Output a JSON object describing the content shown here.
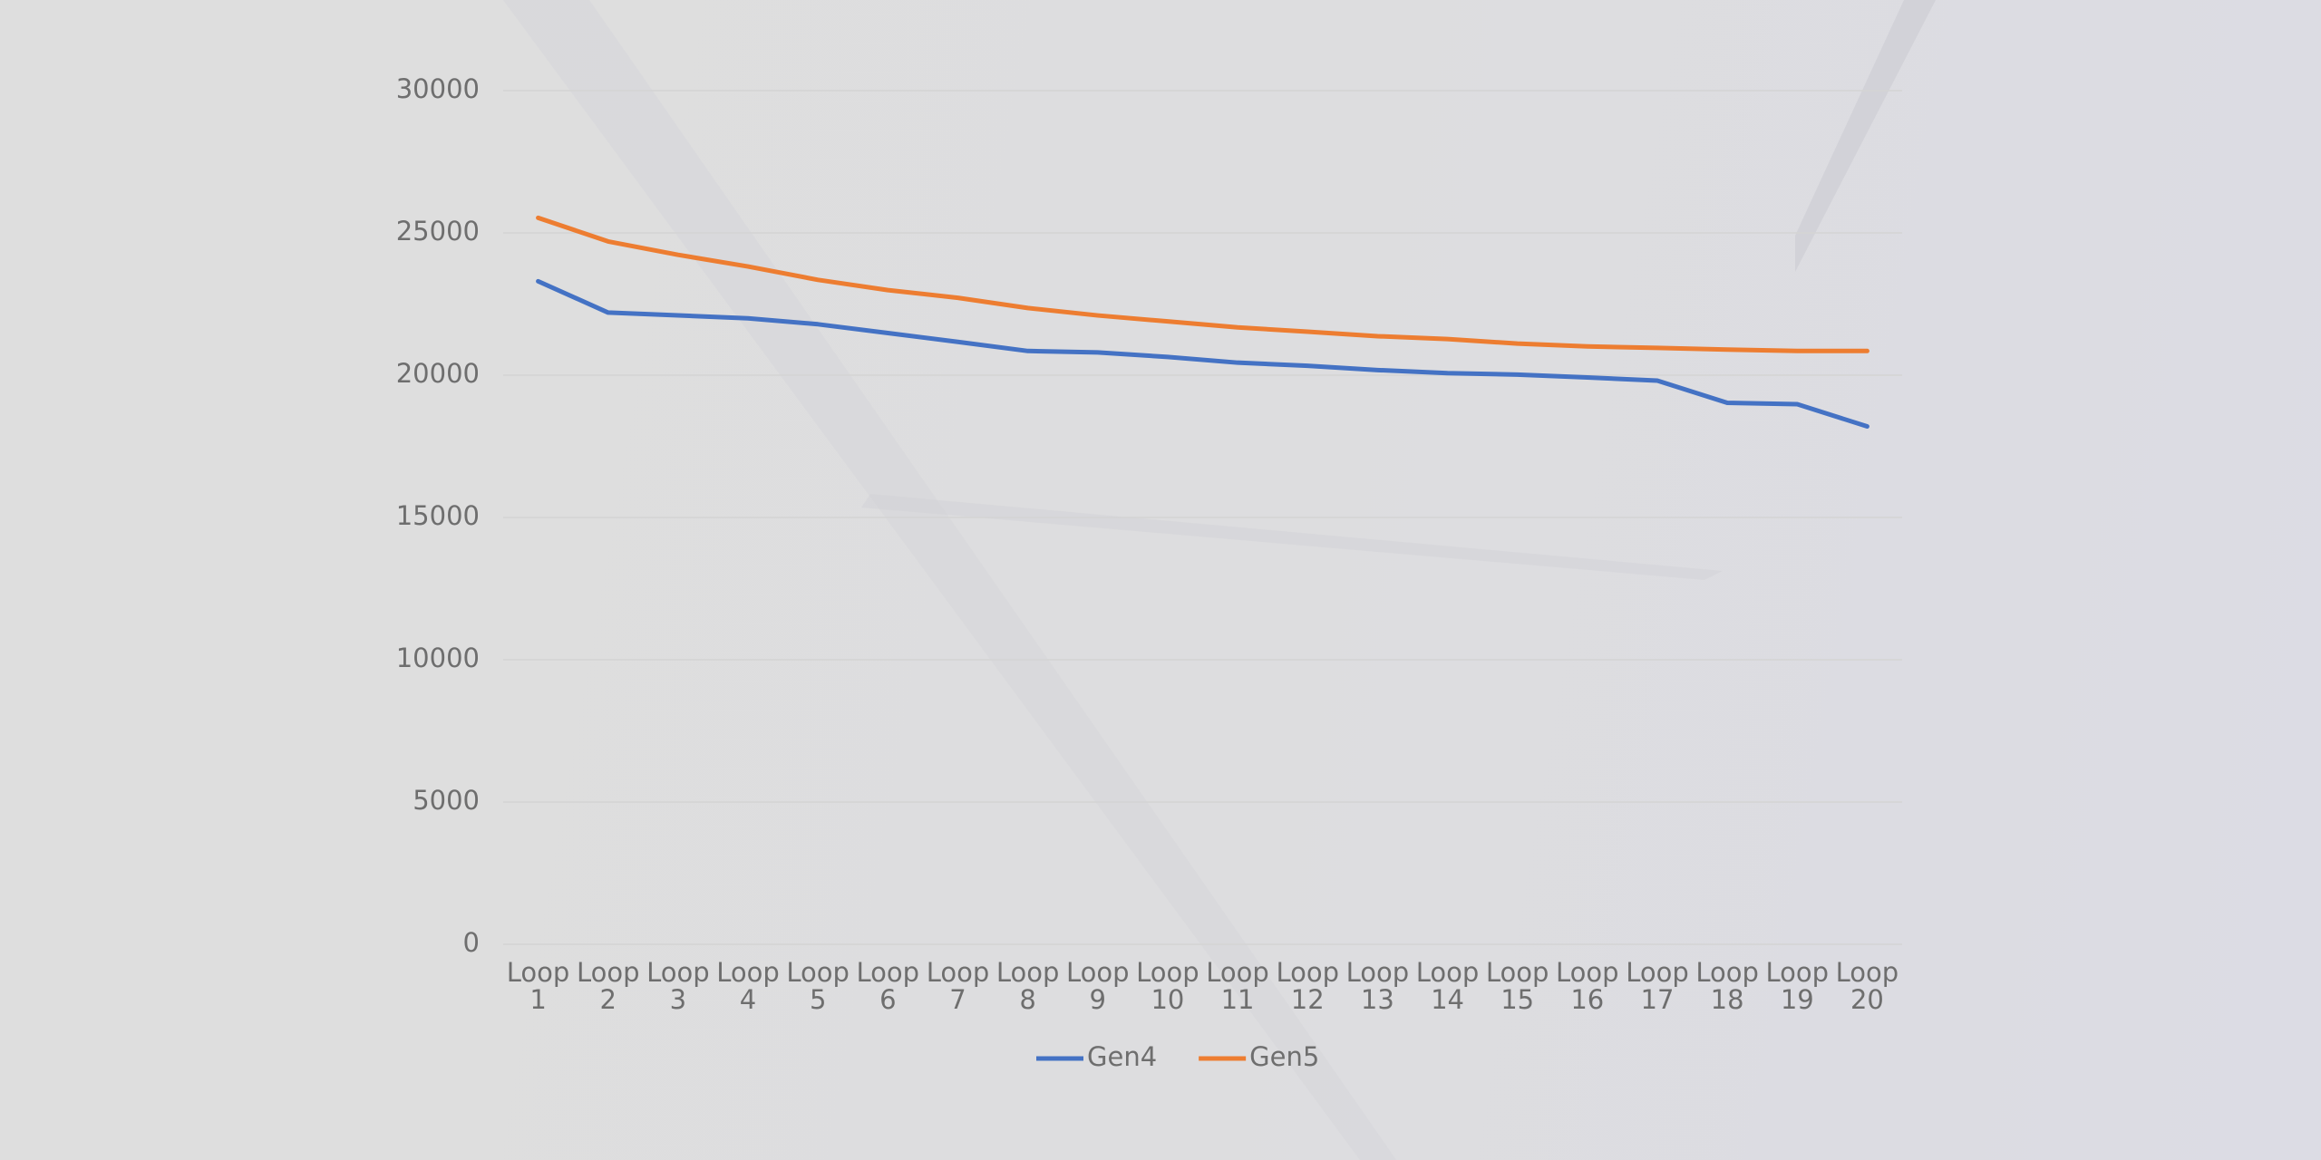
{
  "chart_data": {
    "type": "line",
    "categories": [
      "Loop 1",
      "Loop 2",
      "Loop 3",
      "Loop 4",
      "Loop 5",
      "Loop 6",
      "Loop 7",
      "Loop 8",
      "Loop 9",
      "Loop 10",
      "Loop 11",
      "Loop 12",
      "Loop 13",
      "Loop 14",
      "Loop 15",
      "Loop 16",
      "Loop 17",
      "Loop 18",
      "Loop 19",
      "Loop 20"
    ],
    "series": [
      {
        "name": "Gen4",
        "color": "#4472c4",
        "values": [
          23300,
          22200,
          22100,
          22000,
          21790,
          21480,
          21170,
          20850,
          20800,
          20640,
          20440,
          20330,
          20180,
          20070,
          20020,
          19920,
          19810,
          19030,
          18980,
          18200
        ]
      },
      {
        "name": "Gen5",
        "color": "#ed7d31",
        "values": [
          25530,
          24700,
          24230,
          23820,
          23350,
          22990,
          22720,
          22360,
          22100,
          21890,
          21680,
          21530,
          21370,
          21270,
          21110,
          21010,
          20960,
          20900,
          20850,
          20850
        ]
      }
    ],
    "ylim": [
      0,
      30000
    ],
    "yticks": [
      0,
      5000,
      10000,
      15000,
      20000,
      25000,
      30000
    ],
    "grid": true,
    "legend": "bottom"
  }
}
